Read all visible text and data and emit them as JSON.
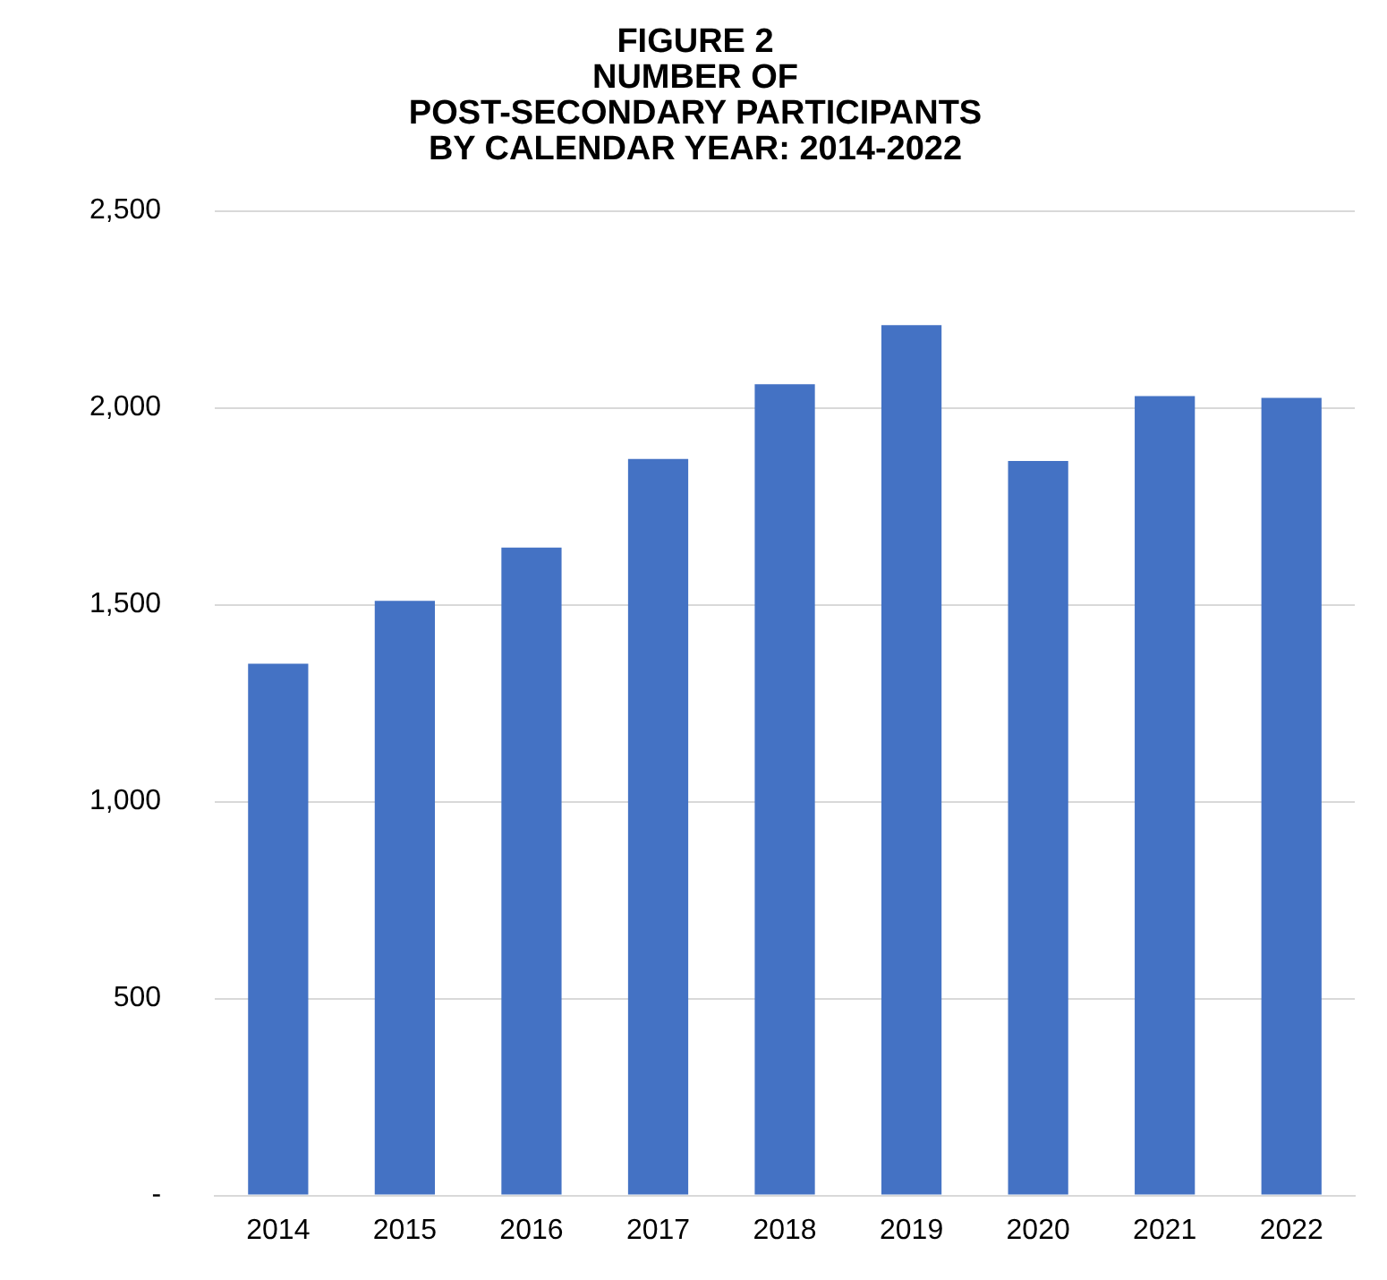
{
  "chart_data": {
    "type": "bar",
    "title": "FIGURE 2\nNUMBER OF\nPOST-SECONDARY PARTICIPANTS\nBY CALENDAR YEAR: 2014-2022",
    "categories": [
      "2014",
      "2015",
      "2016",
      "2017",
      "2018",
      "2019",
      "2020",
      "2021",
      "2022"
    ],
    "values": [
      1350,
      1510,
      1645,
      1870,
      2060,
      2210,
      1865,
      2030,
      2025
    ],
    "color": "#4472c4",
    "ylim": [
      0,
      2500
    ],
    "yticks": [
      {
        "value": 0,
        "label": "-"
      },
      {
        "value": 500,
        "label": "500"
      },
      {
        "value": 1000,
        "label": "1,000"
      },
      {
        "value": 1500,
        "label": "1,500"
      },
      {
        "value": 2000,
        "label": "2,000"
      },
      {
        "value": 2500,
        "label": "2,500"
      }
    ],
    "grid": "y"
  }
}
